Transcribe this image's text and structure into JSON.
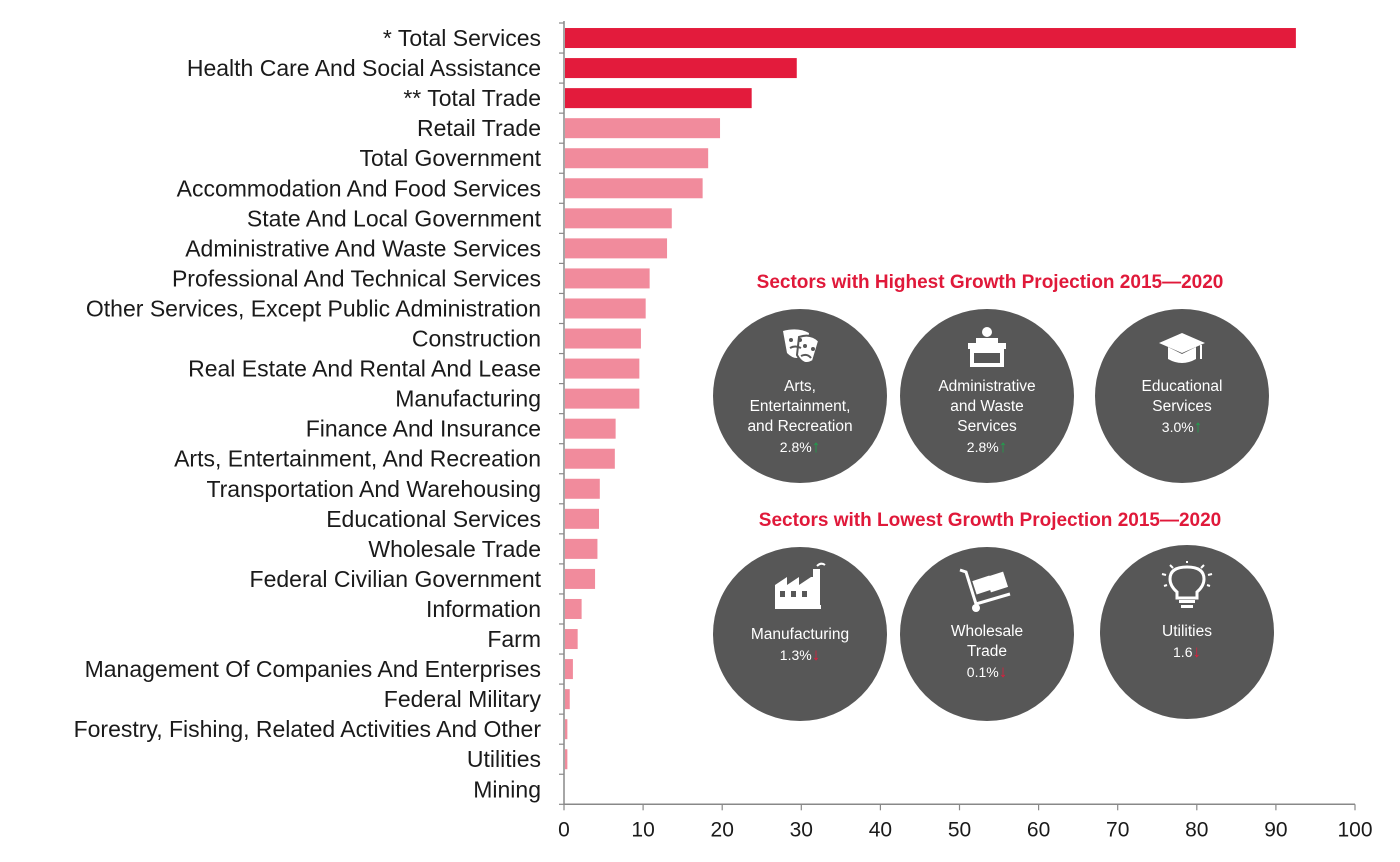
{
  "chart_data": {
    "type": "bar",
    "orientation": "horizontal",
    "categories": [
      "* Total Services",
      "Health Care And Social Assistance",
      "** Total Trade",
      "Retail Trade",
      "Total Government",
      "Accommodation And Food Services",
      "State And Local Government",
      "Administrative And Waste Services",
      "Professional And Technical Services",
      "Other Services, Except Public Administration",
      "Construction",
      "Real Estate And Rental And Lease",
      "Manufacturing",
      "Finance And Insurance",
      "Arts, Entertainment, And Recreation",
      "Transportation And Warehousing",
      "Educational Services",
      "Wholesale Trade",
      "Federal Civilian Government",
      "Information",
      "Farm",
      "Management Of Companies And Enterprises",
      "Federal Military",
      "Forestry, Fishing, Related Activities And Other",
      "Utilities",
      "Mining"
    ],
    "values": [
      92.4,
      29.3,
      23.6,
      19.6,
      18.1,
      17.4,
      13.5,
      12.9,
      10.7,
      10.2,
      9.6,
      9.4,
      9.4,
      6.4,
      6.3,
      4.4,
      4.3,
      4.1,
      3.8,
      2.1,
      1.6,
      1.0,
      0.6,
      0.3,
      0.3,
      0
    ],
    "highlighted": [
      true,
      true,
      true,
      false,
      false,
      false,
      false,
      false,
      false,
      false,
      false,
      false,
      false,
      false,
      false,
      false,
      false,
      false,
      false,
      false,
      false,
      false,
      false,
      false,
      false,
      false
    ],
    "xlim": [
      0,
      100
    ],
    "xticks": [
      "0",
      "10",
      "20",
      "30",
      "40",
      "50",
      "60",
      "70",
      "80",
      "90",
      "100"
    ],
    "grid": false,
    "colors": {
      "highlight": "#e31b3c",
      "normal": "#f18b9c",
      "axis": "#888888"
    }
  },
  "highest": {
    "title": "Sectors with Highest Growth Projection 2015—2020",
    "items": [
      {
        "icon": "theater-masks-icon",
        "lines": [
          "Arts,",
          "Entertainment,",
          "and Recreation"
        ],
        "value": "2.8%",
        "trend": "up"
      },
      {
        "icon": "podium-desk-icon",
        "lines": [
          "Administrative",
          "and Waste",
          "Services"
        ],
        "value": "2.8%",
        "trend": "up"
      },
      {
        "icon": "graduation-cap-icon",
        "lines": [
          "Educational",
          "Services"
        ],
        "value": "3.0%",
        "trend": "up"
      }
    ]
  },
  "lowest": {
    "title": "Sectors with Lowest Growth Projection 2015—2020",
    "items": [
      {
        "icon": "factory-icon",
        "lines": [
          "Manufacturing"
        ],
        "value": "1.3%",
        "trend": "down"
      },
      {
        "icon": "hand-truck-icon",
        "lines": [
          "Wholesale",
          "Trade"
        ],
        "value": "0.1%",
        "trend": "down"
      },
      {
        "icon": "lightbulb-icon",
        "lines": [
          "Utilities"
        ],
        "value": "1.6",
        "trend": "down"
      }
    ]
  },
  "arrows": {
    "up": "↑",
    "down": "↓",
    "up_color": "#1aa84a",
    "down_color": "#e31b3c"
  }
}
